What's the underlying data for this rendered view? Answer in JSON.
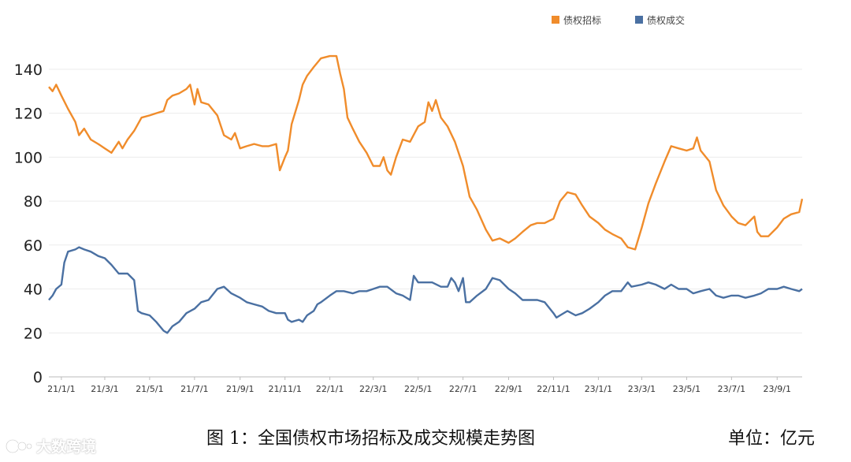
{
  "chart_data": {
    "type": "line",
    "title": "",
    "xlabel": "",
    "ylabel": "",
    "ylim": [
      0,
      150
    ],
    "y_ticks": [
      0,
      20,
      40,
      60,
      80,
      100,
      120,
      140
    ],
    "x_tick_labels": [
      "21/1/1",
      "21/3/1",
      "21/5/1",
      "21/7/1",
      "21/9/1",
      "21/11/1",
      "22/1/1",
      "22/3/1",
      "22/5/1",
      "22/7/1",
      "22/9/1",
      "22/11/1",
      "23/1/1",
      "23/3/1",
      "23/5/1",
      "23/7/1",
      "23/9/1"
    ],
    "grid": true,
    "legend_position": "top-right",
    "series": [
      {
        "name": "债权招标",
        "color": "#F08C2B",
        "points": [
          [
            "2020-12-15",
            132
          ],
          [
            "2020-12-20",
            130
          ],
          [
            "2020-12-25",
            133
          ],
          [
            "2021-01-01",
            128
          ],
          [
            "2021-01-10",
            122
          ],
          [
            "2021-01-20",
            116
          ],
          [
            "2021-01-25",
            110
          ],
          [
            "2021-02-01",
            113
          ],
          [
            "2021-02-10",
            108
          ],
          [
            "2021-02-20",
            106
          ],
          [
            "2021-03-01",
            104
          ],
          [
            "2021-03-10",
            102
          ],
          [
            "2021-03-20",
            107
          ],
          [
            "2021-03-25",
            104
          ],
          [
            "2021-04-01",
            108
          ],
          [
            "2021-04-10",
            112
          ],
          [
            "2021-04-20",
            118
          ],
          [
            "2021-05-01",
            119
          ],
          [
            "2021-05-10",
            120
          ],
          [
            "2021-05-20",
            121
          ],
          [
            "2021-05-25",
            126
          ],
          [
            "2021-06-01",
            128
          ],
          [
            "2021-06-10",
            129
          ],
          [
            "2021-06-20",
            131
          ],
          [
            "2021-06-25",
            133
          ],
          [
            "2021-07-01",
            124
          ],
          [
            "2021-07-05",
            131
          ],
          [
            "2021-07-10",
            125
          ],
          [
            "2021-07-20",
            124
          ],
          [
            "2021-08-01",
            119
          ],
          [
            "2021-08-10",
            110
          ],
          [
            "2021-08-20",
            108
          ],
          [
            "2021-08-25",
            111
          ],
          [
            "2021-09-01",
            104
          ],
          [
            "2021-09-10",
            105
          ],
          [
            "2021-09-20",
            106
          ],
          [
            "2021-10-01",
            105
          ],
          [
            "2021-10-10",
            105
          ],
          [
            "2021-10-20",
            106
          ],
          [
            "2021-10-25",
            94
          ],
          [
            "2021-11-01",
            100
          ],
          [
            "2021-11-05",
            103
          ],
          [
            "2021-11-10",
            115
          ],
          [
            "2021-11-20",
            126
          ],
          [
            "2021-11-25",
            133
          ],
          [
            "2021-12-01",
            137
          ],
          [
            "2021-12-10",
            141
          ],
          [
            "2021-12-20",
            145
          ],
          [
            "2022-01-01",
            146
          ],
          [
            "2022-01-10",
            146
          ],
          [
            "2022-01-15",
            138
          ],
          [
            "2022-01-20",
            131
          ],
          [
            "2022-01-25",
            118
          ],
          [
            "2022-02-01",
            113
          ],
          [
            "2022-02-10",
            107
          ],
          [
            "2022-02-20",
            102
          ],
          [
            "2022-03-01",
            96
          ],
          [
            "2022-03-10",
            96
          ],
          [
            "2022-03-15",
            100
          ],
          [
            "2022-03-20",
            94
          ],
          [
            "2022-03-25",
            92
          ],
          [
            "2022-04-01",
            100
          ],
          [
            "2022-04-10",
            108
          ],
          [
            "2022-04-20",
            107
          ],
          [
            "2022-05-01",
            114
          ],
          [
            "2022-05-10",
            116
          ],
          [
            "2022-05-15",
            125
          ],
          [
            "2022-05-20",
            121
          ],
          [
            "2022-05-25",
            126
          ],
          [
            "2022-06-01",
            118
          ],
          [
            "2022-06-10",
            114
          ],
          [
            "2022-06-20",
            107
          ],
          [
            "2022-07-01",
            96
          ],
          [
            "2022-07-10",
            82
          ],
          [
            "2022-07-20",
            76
          ],
          [
            "2022-08-01",
            67
          ],
          [
            "2022-08-10",
            62
          ],
          [
            "2022-08-20",
            63
          ],
          [
            "2022-09-01",
            61
          ],
          [
            "2022-09-10",
            63
          ],
          [
            "2022-09-20",
            66
          ],
          [
            "2022-10-01",
            69
          ],
          [
            "2022-10-10",
            70
          ],
          [
            "2022-10-20",
            70
          ],
          [
            "2022-11-01",
            72
          ],
          [
            "2022-11-10",
            80
          ],
          [
            "2022-11-20",
            84
          ],
          [
            "2022-12-01",
            83
          ],
          [
            "2022-12-10",
            78
          ],
          [
            "2022-12-20",
            73
          ],
          [
            "2023-01-01",
            70
          ],
          [
            "2023-01-10",
            67
          ],
          [
            "2023-01-20",
            65
          ],
          [
            "2023-02-01",
            63
          ],
          [
            "2023-02-10",
            59
          ],
          [
            "2023-02-20",
            58
          ],
          [
            "2023-03-01",
            68
          ],
          [
            "2023-03-10",
            79
          ],
          [
            "2023-03-20",
            88
          ],
          [
            "2023-04-01",
            98
          ],
          [
            "2023-04-10",
            105
          ],
          [
            "2023-04-20",
            104
          ],
          [
            "2023-05-01",
            103
          ],
          [
            "2023-05-10",
            104
          ],
          [
            "2023-05-15",
            109
          ],
          [
            "2023-05-20",
            103
          ],
          [
            "2023-06-01",
            98
          ],
          [
            "2023-06-10",
            85
          ],
          [
            "2023-06-20",
            78
          ],
          [
            "2023-07-01",
            73
          ],
          [
            "2023-07-10",
            70
          ],
          [
            "2023-07-20",
            69
          ],
          [
            "2023-08-01",
            73
          ],
          [
            "2023-08-05",
            66
          ],
          [
            "2023-08-10",
            64
          ],
          [
            "2023-08-20",
            64
          ],
          [
            "2023-09-01",
            68
          ],
          [
            "2023-09-10",
            72
          ],
          [
            "2023-09-20",
            74
          ],
          [
            "2023-10-01",
            75
          ],
          [
            "2023-10-05",
            81
          ]
        ]
      },
      {
        "name": "债权成交",
        "color": "#4A70A2",
        "points": [
          [
            "2020-12-15",
            35
          ],
          [
            "2020-12-20",
            37
          ],
          [
            "2020-12-25",
            40
          ],
          [
            "2021-01-01",
            42
          ],
          [
            "2021-01-05",
            52
          ],
          [
            "2021-01-10",
            57
          ],
          [
            "2021-01-20",
            58
          ],
          [
            "2021-01-25",
            59
          ],
          [
            "2021-02-01",
            58
          ],
          [
            "2021-02-10",
            57
          ],
          [
            "2021-02-20",
            55
          ],
          [
            "2021-03-01",
            54
          ],
          [
            "2021-03-10",
            51
          ],
          [
            "2021-03-20",
            47
          ],
          [
            "2021-04-01",
            47
          ],
          [
            "2021-04-10",
            44
          ],
          [
            "2021-04-15",
            30
          ],
          [
            "2021-04-20",
            29
          ],
          [
            "2021-05-01",
            28
          ],
          [
            "2021-05-10",
            25
          ],
          [
            "2021-05-20",
            21
          ],
          [
            "2021-05-25",
            20
          ],
          [
            "2021-06-01",
            23
          ],
          [
            "2021-06-10",
            25
          ],
          [
            "2021-06-20",
            29
          ],
          [
            "2021-07-01",
            31
          ],
          [
            "2021-07-10",
            34
          ],
          [
            "2021-07-20",
            35
          ],
          [
            "2021-08-01",
            40
          ],
          [
            "2021-08-10",
            41
          ],
          [
            "2021-08-20",
            38
          ],
          [
            "2021-09-01",
            36
          ],
          [
            "2021-09-10",
            34
          ],
          [
            "2021-09-20",
            33
          ],
          [
            "2021-10-01",
            32
          ],
          [
            "2021-10-10",
            30
          ],
          [
            "2021-10-20",
            29
          ],
          [
            "2021-11-01",
            29
          ],
          [
            "2021-11-05",
            26
          ],
          [
            "2021-11-10",
            25
          ],
          [
            "2021-11-20",
            26
          ],
          [
            "2021-11-25",
            25
          ],
          [
            "2021-12-01",
            28
          ],
          [
            "2021-12-10",
            30
          ],
          [
            "2021-12-15",
            33
          ],
          [
            "2021-12-20",
            34
          ],
          [
            "2022-01-01",
            37
          ],
          [
            "2022-01-10",
            39
          ],
          [
            "2022-01-20",
            39
          ],
          [
            "2022-02-01",
            38
          ],
          [
            "2022-02-10",
            39
          ],
          [
            "2022-02-20",
            39
          ],
          [
            "2022-03-01",
            40
          ],
          [
            "2022-03-10",
            41
          ],
          [
            "2022-03-20",
            41
          ],
          [
            "2022-04-01",
            38
          ],
          [
            "2022-04-10",
            37
          ],
          [
            "2022-04-20",
            35
          ],
          [
            "2022-04-25",
            46
          ],
          [
            "2022-05-01",
            43
          ],
          [
            "2022-05-10",
            43
          ],
          [
            "2022-05-20",
            43
          ],
          [
            "2022-06-01",
            41
          ],
          [
            "2022-06-10",
            41
          ],
          [
            "2022-06-15",
            45
          ],
          [
            "2022-06-20",
            43
          ],
          [
            "2022-06-25",
            39
          ],
          [
            "2022-07-01",
            45
          ],
          [
            "2022-07-05",
            34
          ],
          [
            "2022-07-10",
            34
          ],
          [
            "2022-07-20",
            37
          ],
          [
            "2022-08-01",
            40
          ],
          [
            "2022-08-10",
            45
          ],
          [
            "2022-08-20",
            44
          ],
          [
            "2022-09-01",
            40
          ],
          [
            "2022-09-10",
            38
          ],
          [
            "2022-09-20",
            35
          ],
          [
            "2022-10-01",
            35
          ],
          [
            "2022-10-10",
            35
          ],
          [
            "2022-10-20",
            34
          ],
          [
            "2022-11-01",
            29
          ],
          [
            "2022-11-05",
            27
          ],
          [
            "2022-11-10",
            28
          ],
          [
            "2022-11-20",
            30
          ],
          [
            "2022-12-01",
            28
          ],
          [
            "2022-12-10",
            29
          ],
          [
            "2022-12-20",
            31
          ],
          [
            "2023-01-01",
            34
          ],
          [
            "2023-01-10",
            37
          ],
          [
            "2023-01-20",
            39
          ],
          [
            "2023-02-01",
            39
          ],
          [
            "2023-02-10",
            43
          ],
          [
            "2023-02-15",
            41
          ],
          [
            "2023-03-01",
            42
          ],
          [
            "2023-03-10",
            43
          ],
          [
            "2023-03-20",
            42
          ],
          [
            "2023-04-01",
            40
          ],
          [
            "2023-04-10",
            42
          ],
          [
            "2023-04-20",
            40
          ],
          [
            "2023-05-01",
            40
          ],
          [
            "2023-05-10",
            38
          ],
          [
            "2023-05-20",
            39
          ],
          [
            "2023-06-01",
            40
          ],
          [
            "2023-06-10",
            37
          ],
          [
            "2023-06-20",
            36
          ],
          [
            "2023-07-01",
            37
          ],
          [
            "2023-07-10",
            37
          ],
          [
            "2023-07-20",
            36
          ],
          [
            "2023-08-01",
            37
          ],
          [
            "2023-08-10",
            38
          ],
          [
            "2023-08-20",
            40
          ],
          [
            "2023-09-01",
            40
          ],
          [
            "2023-09-10",
            41
          ],
          [
            "2023-09-20",
            40
          ],
          [
            "2023-10-01",
            39
          ],
          [
            "2023-10-05",
            40
          ]
        ]
      }
    ]
  },
  "caption": "图 1：全国债权市场招标及成交规模走势图",
  "unit": "单位：亿元",
  "watermark": "大数跨境"
}
